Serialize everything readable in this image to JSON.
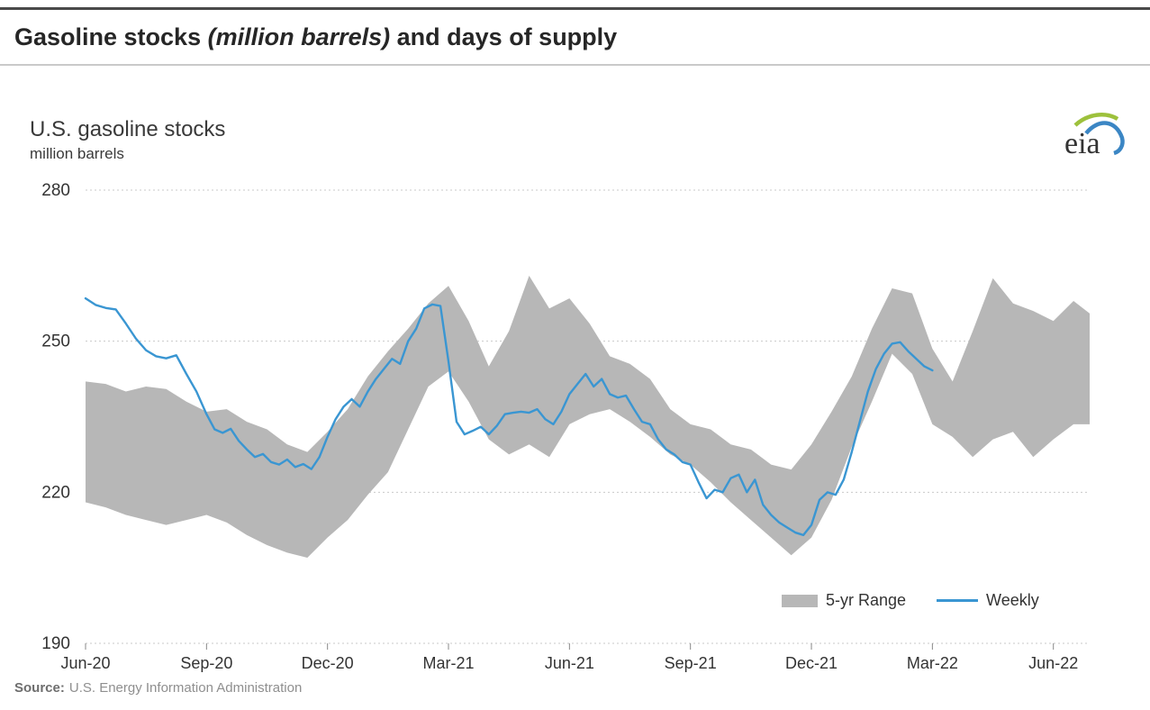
{
  "page": {
    "heading": {
      "prefix": "Gasoline stocks ",
      "italic": "(million barrels)",
      "suffix": " and days of supply"
    },
    "source": {
      "label": "Source:",
      "text": "U.S. Energy Information Administration"
    }
  },
  "chart": {
    "title": "U.S. gasoline stocks",
    "subtitle": "million barrels",
    "logo_text": "eia"
  },
  "chart_data": {
    "type": "line",
    "title": "U.S. gasoline stocks",
    "ylabel": "million barrels",
    "x_unit": "months since Jun-2020, weekly data",
    "xlim": [
      0,
      24.9
    ],
    "ylim": [
      190,
      280
    ],
    "yticks": [
      190,
      220,
      250,
      280
    ],
    "xticks": [
      {
        "pos": 0,
        "label": "Jun-20"
      },
      {
        "pos": 3,
        "label": "Sep-20"
      },
      {
        "pos": 6,
        "label": "Dec-20"
      },
      {
        "pos": 9,
        "label": "Mar-21"
      },
      {
        "pos": 12,
        "label": "Jun-21"
      },
      {
        "pos": 15,
        "label": "Sep-21"
      },
      {
        "pos": 18,
        "label": "Dec-21"
      },
      {
        "pos": 21,
        "label": "Mar-22"
      },
      {
        "pos": 24,
        "label": "Jun-22"
      }
    ],
    "grid": "horizontal-dotted",
    "legend_position": "inside-bottom-right",
    "legend": [
      {
        "label": "5-yr Range",
        "swatch": "band",
        "color": "#b7b7b7"
      },
      {
        "label": "Weekly",
        "swatch": "line",
        "color": "#3a96d2"
      }
    ],
    "series": [
      {
        "name": "Weekly",
        "type": "line",
        "color": "#3a96d2",
        "x": [
          0,
          0.25,
          0.5,
          0.75,
          1,
          1.25,
          1.5,
          1.75,
          2,
          2.25,
          2.5,
          2.75,
          3,
          3.2,
          3.4,
          3.6,
          3.8,
          4,
          4.2,
          4.4,
          4.6,
          4.8,
          5,
          5.2,
          5.4,
          5.6,
          5.8,
          6,
          6.2,
          6.4,
          6.6,
          6.8,
          7,
          7.2,
          7.4,
          7.6,
          7.8,
          8,
          8.2,
          8.4,
          8.6,
          8.8,
          9,
          9.2,
          9.4,
          9.6,
          9.8,
          10,
          10.2,
          10.4,
          10.6,
          10.8,
          11,
          11.2,
          11.4,
          11.6,
          11.8,
          12,
          12.2,
          12.4,
          12.6,
          12.8,
          13,
          13.2,
          13.4,
          13.6,
          13.8,
          14,
          14.2,
          14.4,
          14.6,
          14.8,
          15,
          15.2,
          15.4,
          15.6,
          15.8,
          16,
          16.2,
          16.4,
          16.6,
          16.8,
          17,
          17.2,
          17.4,
          17.6,
          17.8,
          18,
          18.2,
          18.4,
          18.6,
          18.8,
          19,
          19.2,
          19.4,
          19.6,
          19.8,
          20,
          20.2,
          20.4,
          20.6,
          20.8,
          21
        ],
        "y": [
          258.5,
          257.2,
          256.6,
          256.3,
          253.5,
          250.5,
          248.2,
          247,
          246.6,
          247.2,
          243.5,
          240,
          235.5,
          232.5,
          231.8,
          232.6,
          230.2,
          228.5,
          227,
          227.6,
          226,
          225.5,
          226.5,
          225,
          225.6,
          224.6,
          227,
          231,
          234.5,
          237,
          238.5,
          237,
          240,
          242.5,
          244.5,
          246.5,
          245.5,
          250,
          252.5,
          256.5,
          257.3,
          257,
          246,
          234,
          231.5,
          232.2,
          233,
          231.5,
          233.2,
          235.5,
          235.8,
          236,
          235.8,
          236.5,
          234.5,
          233.5,
          236,
          239.5,
          241.5,
          243.5,
          241,
          242.5,
          239.5,
          238.8,
          239.2,
          236.5,
          234,
          233.5,
          230.5,
          228.5,
          227.5,
          226,
          225.5,
          222,
          218.8,
          220.5,
          220,
          222.8,
          223.5,
          220,
          222.5,
          217.5,
          215.5,
          214,
          213,
          212,
          211.5,
          213.5,
          218.5,
          220,
          219.5,
          222.5,
          228,
          234,
          240,
          244.5,
          247.5,
          249.5,
          249.8,
          248,
          246.5,
          245,
          244.2
        ]
      },
      {
        "name": "5-yr Range",
        "type": "band",
        "color": "#b7b7b7",
        "x": [
          0,
          0.5,
          1,
          1.5,
          2,
          2.5,
          3,
          3.5,
          4,
          4.5,
          5,
          5.5,
          6,
          6.5,
          7,
          7.5,
          8,
          8.5,
          9,
          9.5,
          10,
          10.5,
          11,
          11.5,
          12,
          12.5,
          13,
          13.5,
          14,
          14.5,
          15,
          15.5,
          16,
          16.5,
          17,
          17.5,
          18,
          18.5,
          19,
          19.5,
          20,
          20.5,
          21,
          21.5,
          22,
          22.5,
          23,
          23.5,
          24,
          24.5,
          24.9
        ],
        "upper": [
          242,
          241.5,
          240,
          241,
          240.5,
          238,
          236,
          236.5,
          234,
          232.5,
          229.5,
          228,
          232,
          236.5,
          243,
          248,
          252.5,
          257.5,
          261,
          254,
          245,
          252,
          263,
          256.5,
          258.5,
          253.5,
          247,
          245.5,
          242.5,
          236.5,
          233.5,
          232.5,
          229.5,
          228.5,
          225.5,
          224.5,
          229.5,
          236,
          243,
          252.5,
          260.5,
          259.5,
          248.5,
          242,
          252,
          262.5,
          257.5,
          256,
          254,
          258,
          255.5
        ],
        "lower": [
          218,
          217,
          215.5,
          214.5,
          213.5,
          214.5,
          215.5,
          214,
          211.5,
          209.5,
          208,
          207,
          211,
          214.5,
          219.5,
          224,
          232.5,
          241,
          244,
          238,
          230.5,
          227.5,
          229.5,
          227,
          233.5,
          235.5,
          236.5,
          234,
          231,
          227.5,
          225.5,
          222,
          218,
          214.5,
          211,
          207.5,
          211,
          218.5,
          229,
          238,
          247.5,
          243.5,
          233.5,
          231,
          227,
          230.5,
          232,
          227,
          230.5,
          233.5,
          233.5
        ]
      }
    ]
  }
}
